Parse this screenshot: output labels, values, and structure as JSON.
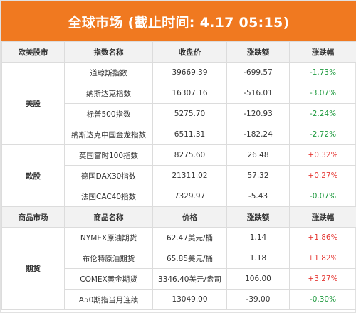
{
  "title": "全球市场 (截止时间: 4.17 05:15)",
  "colors": {
    "header_orange": "#f07920",
    "up_red": "#e53935",
    "down_green": "#1f9a3f"
  },
  "section1_header": {
    "col1": "欧美股市",
    "col2": "指数名称",
    "col3": "收盘价",
    "col4": "涨跌额",
    "col5": "涨跌幅"
  },
  "us": {
    "group": "美股",
    "rows": [
      {
        "name": "道琼斯指数",
        "price": "39669.39",
        "change": "-699.57",
        "pct": "-1.73%"
      },
      {
        "name": "纳斯达克指数",
        "price": "16307.16",
        "change": "-516.01",
        "pct": "-3.07%"
      },
      {
        "name": "标普500指数",
        "price": "5275.70",
        "change": "-120.93",
        "pct": "-2.24%"
      },
      {
        "name": "纳斯达克中国金龙指数",
        "price": "6511.31",
        "change": "-182.24",
        "pct": "-2.72%"
      }
    ]
  },
  "eu": {
    "group": "欧股",
    "rows": [
      {
        "name": "英国富时100指数",
        "price": "8275.60",
        "change": "26.48",
        "pct": "+0.32%"
      },
      {
        "name": "德国DAX30指数",
        "price": "21311.02",
        "change": "57.32",
        "pct": "+0.27%"
      },
      {
        "name": "法国CAC40指数",
        "price": "7329.97",
        "change": "-5.43",
        "pct": "-0.07%"
      }
    ]
  },
  "section2_header": {
    "col1": "商品市场",
    "col2": "商品名称",
    "col3": "价格",
    "col4": "涨跌额",
    "col5": "涨跌幅"
  },
  "futures": {
    "group": "期货",
    "rows": [
      {
        "name": "NYMEX原油期货",
        "price": "62.47美元/桶",
        "change": "1.14",
        "pct": "+1.86%"
      },
      {
        "name": "布伦特原油期货",
        "price": "65.85美元/桶",
        "change": "1.18",
        "pct": "+1.82%"
      },
      {
        "name": "COMEX黄金期货",
        "price": "3346.40美元/盎司",
        "change": "106.00",
        "pct": "+3.27%"
      },
      {
        "name": "A50期指当月连续",
        "price": "13049.00",
        "change": "-39.00",
        "pct": "-0.30%"
      }
    ]
  }
}
